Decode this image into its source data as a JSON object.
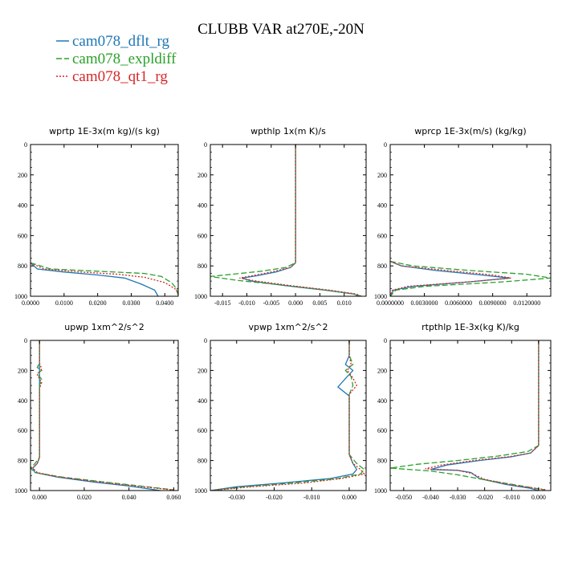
{
  "title": "CLUBB VAR at270E,-20N",
  "legend": [
    {
      "name": "cam078_dflt_rg",
      "color": "#1f77b4",
      "dash": "solid"
    },
    {
      "name": "cam078_expldiff",
      "color": "#2ca02c",
      "dash": "long-dash"
    },
    {
      "name": "cam078_qt1_rg",
      "color": "#d62728",
      "dash": "dotted"
    }
  ],
  "colors": {
    "dflt": "#1f77b4",
    "expldiff": "#2ca02c",
    "qt1": "#d62728"
  },
  "chart_data": [
    {
      "type": "line",
      "title": "wprtp  1E-3x(m kg)/(s kg)",
      "xlim": [
        0,
        0.044
      ],
      "ylim": [
        1000,
        0
      ],
      "xticks": [
        0,
        0.01,
        0.02,
        0.03,
        0.04
      ],
      "xtick_labels": [
        "0.0000",
        "0.0100",
        "0.0200",
        "0.0300",
        "0.0400"
      ],
      "yticks": [
        0,
        200,
        400,
        600,
        800,
        1000
      ],
      "series": [
        {
          "name": "cam078_dflt_rg",
          "points": [
            [
              0,
              780
            ],
            [
              0.002,
              820
            ],
            [
              0.01,
              840
            ],
            [
              0.02,
              860
            ],
            [
              0.028,
              880
            ],
            [
              0.033,
              920
            ],
            [
              0.037,
              960
            ],
            [
              0.038,
              1000
            ]
          ]
        },
        {
          "name": "cam078_expldiff",
          "points": [
            [
              0,
              780
            ],
            [
              0.006,
              820
            ],
            [
              0.02,
              835
            ],
            [
              0.034,
              850
            ],
            [
              0.039,
              870
            ],
            [
              0.042,
              910
            ],
            [
              0.0435,
              950
            ],
            [
              0.044,
              1000
            ]
          ]
        },
        {
          "name": "cam078_qt1_rg",
          "points": [
            [
              0,
              780
            ],
            [
              0.004,
              820
            ],
            [
              0.015,
              840
            ],
            [
              0.026,
              855
            ],
            [
              0.034,
              875
            ],
            [
              0.04,
              910
            ],
            [
              0.043,
              950
            ],
            [
              0.044,
              980
            ]
          ]
        }
      ]
    },
    {
      "type": "line",
      "title": "wpthlp  1x(m K)/s",
      "xlim": [
        -0.0175,
        0.0145
      ],
      "ylim": [
        1000,
        0
      ],
      "xticks": [
        -0.015,
        -0.01,
        -0.005,
        0,
        0.005,
        0.01
      ],
      "xtick_labels": [
        "-0.015",
        "-0.010",
        "-0.005",
        "0.000",
        "0.005",
        "0.010"
      ],
      "yticks": [
        0,
        200,
        400,
        600,
        800,
        1000
      ],
      "series": [
        {
          "name": "cam078_dflt_rg",
          "points": [
            [
              0,
              0
            ],
            [
              0,
              780
            ],
            [
              -0.001,
              810
            ],
            [
              -0.004,
              840
            ],
            [
              -0.008,
              865
            ],
            [
              -0.011,
              880
            ],
            [
              -0.009,
              900
            ],
            [
              -0.002,
              930
            ],
            [
              0.006,
              960
            ],
            [
              0.012,
              985
            ],
            [
              0.013,
              1000
            ]
          ]
        },
        {
          "name": "cam078_expldiff",
          "points": [
            [
              0,
              0
            ],
            [
              0,
              780
            ],
            [
              -0.002,
              810
            ],
            [
              -0.007,
              835
            ],
            [
              -0.013,
              855
            ],
            [
              -0.0175,
              870
            ],
            [
              -0.012,
              895
            ],
            [
              -0.003,
              925
            ],
            [
              0.006,
              958
            ],
            [
              0.012,
              985
            ],
            [
              0.0135,
              1000
            ]
          ]
        },
        {
          "name": "cam078_qt1_rg",
          "points": [
            [
              0,
              0
            ],
            [
              0,
              780
            ],
            [
              -0.001,
              810
            ],
            [
              -0.005,
              840
            ],
            [
              -0.009,
              865
            ],
            [
              -0.0115,
              880
            ],
            [
              -0.008,
              900
            ],
            [
              -0.001,
              930
            ],
            [
              0.007,
              960
            ],
            [
              0.0125,
              985
            ],
            [
              0.0135,
              1000
            ]
          ]
        }
      ]
    },
    {
      "type": "line",
      "title": "wprcp  1E-3x(m/s) (kg/kg)",
      "xlim": [
        0,
        0.0141
      ],
      "ylim": [
        1000,
        0
      ],
      "xticks": [
        0,
        0.003,
        0.006,
        0.009,
        0.012
      ],
      "xtick_labels": [
        "0.0000000",
        "0.0030000",
        "0.0060000",
        "0.0090000",
        "0.0120000"
      ],
      "yticks": [
        0,
        200,
        400,
        600,
        800,
        1000
      ],
      "series": [
        {
          "name": "cam078_dflt_rg",
          "points": [
            [
              0,
              770
            ],
            [
              0.001,
              800
            ],
            [
              0.004,
              830
            ],
            [
              0.008,
              860
            ],
            [
              0.0105,
              880
            ],
            [
              0.007,
              905
            ],
            [
              0.002,
              935
            ],
            [
              0.0003,
              960
            ],
            [
              0,
              1000
            ]
          ]
        },
        {
          "name": "cam078_expldiff",
          "points": [
            [
              0,
              770
            ],
            [
              0.002,
              800
            ],
            [
              0.007,
              830
            ],
            [
              0.012,
              855
            ],
            [
              0.0141,
              880
            ],
            [
              0.01,
              905
            ],
            [
              0.003,
              935
            ],
            [
              0.0005,
              960
            ],
            [
              0,
              1000
            ]
          ]
        },
        {
          "name": "cam078_qt1_rg",
          "points": [
            [
              0,
              770
            ],
            [
              0.001,
              800
            ],
            [
              0.005,
              830
            ],
            [
              0.009,
              860
            ],
            [
              0.0106,
              880
            ],
            [
              0.007,
              905
            ],
            [
              0.0015,
              935
            ],
            [
              0.0002,
              960
            ],
            [
              0,
              1000
            ]
          ]
        }
      ]
    },
    {
      "type": "line",
      "title": "upwp  1xm^2/s^2",
      "xlim": [
        -0.004,
        0.062
      ],
      "ylim": [
        1000,
        0
      ],
      "xticks": [
        0,
        0.02,
        0.04,
        0.06
      ],
      "xtick_labels": [
        "0.000",
        "0.020",
        "0.040",
        "0.060"
      ],
      "yticks": [
        0,
        200,
        400,
        600,
        800,
        1000
      ],
      "series": [
        {
          "name": "cam078_dflt_rg",
          "points": [
            [
              0,
              0
            ],
            [
              0,
              150
            ],
            [
              0,
              250
            ],
            [
              0,
              350
            ],
            [
              0,
              780
            ],
            [
              -0.001,
              820
            ],
            [
              -0.003,
              850
            ],
            [
              -0.002,
              880
            ],
            [
              0.008,
              910
            ],
            [
              0.025,
              945
            ],
            [
              0.04,
              970
            ],
            [
              0.054,
              1000
            ]
          ]
        },
        {
          "name": "cam078_expldiff",
          "points": [
            [
              0,
              0
            ],
            [
              0,
              150
            ],
            [
              -0.001,
              180
            ],
            [
              0.001,
              200
            ],
            [
              -0.001,
              220
            ],
            [
              0.001,
              260
            ],
            [
              0,
              300
            ],
            [
              0,
              780
            ],
            [
              -0.002,
              820
            ],
            [
              -0.004,
              850
            ],
            [
              -0.002,
              880
            ],
            [
              0.01,
              910
            ],
            [
              0.03,
              945
            ],
            [
              0.048,
              975
            ],
            [
              0.06,
              995
            ]
          ]
        },
        {
          "name": "cam078_qt1_rg",
          "points": [
            [
              0,
              0
            ],
            [
              0,
              150
            ],
            [
              0.001,
              190
            ],
            [
              -0.001,
              230
            ],
            [
              0.001,
              280
            ],
            [
              0,
              320
            ],
            [
              0,
              780
            ],
            [
              -0.001,
              820
            ],
            [
              -0.003,
              850
            ],
            [
              -0.001,
              880
            ],
            [
              0.009,
              910
            ],
            [
              0.028,
              945
            ],
            [
              0.046,
              975
            ],
            [
              0.061,
              998
            ]
          ]
        }
      ]
    },
    {
      "type": "line",
      "title": "vpwp  1xm^2/s^2",
      "xlim": [
        -0.037,
        0.0045
      ],
      "ylim": [
        1000,
        0
      ],
      "xticks": [
        -0.03,
        -0.02,
        -0.01,
        0
      ],
      "xtick_labels": [
        "-0.030",
        "-0.020",
        "-0.010",
        "0.000"
      ],
      "yticks": [
        0,
        200,
        400,
        600,
        800,
        1000
      ],
      "series": [
        {
          "name": "cam078_dflt_rg",
          "points": [
            [
              0,
              0
            ],
            [
              0,
              100
            ],
            [
              -0.001,
              160
            ],
            [
              0.001,
              200
            ],
            [
              -0.0005,
              240
            ],
            [
              -0.003,
              310
            ],
            [
              0,
              370
            ],
            [
              0,
              760
            ],
            [
              0.001,
              820
            ],
            [
              0.002,
              860
            ],
            [
              0.001,
              890
            ],
            [
              -0.005,
              920
            ],
            [
              -0.018,
              950
            ],
            [
              -0.03,
              975
            ],
            [
              -0.037,
              1000
            ]
          ]
        },
        {
          "name": "cam078_expldiff",
          "points": [
            [
              0,
              0
            ],
            [
              0,
              100
            ],
            [
              0.001,
              160
            ],
            [
              -0.001,
              200
            ],
            [
              0.0005,
              240
            ],
            [
              0.001,
              300
            ],
            [
              0,
              360
            ],
            [
              0,
              760
            ],
            [
              0.002,
              820
            ],
            [
              0.004,
              860
            ],
            [
              0.003,
              890
            ],
            [
              -0.003,
              920
            ],
            [
              -0.015,
              950
            ],
            [
              -0.028,
              975
            ],
            [
              -0.036,
              998
            ]
          ]
        },
        {
          "name": "cam078_qt1_rg",
          "points": [
            [
              0,
              0
            ],
            [
              0,
              100
            ],
            [
              0.0005,
              160
            ],
            [
              -0.0005,
              200
            ],
            [
              0.001,
              250
            ],
            [
              0.002,
              300
            ],
            [
              0,
              360
            ],
            [
              0,
              760
            ],
            [
              0.001,
              820
            ],
            [
              0.003,
              860
            ],
            [
              0.004,
              890
            ],
            [
              -0.002,
              920
            ],
            [
              -0.012,
              950
            ],
            [
              -0.026,
              975
            ],
            [
              -0.036,
              998
            ]
          ]
        }
      ]
    },
    {
      "type": "line",
      "title": "rtpthlp  1E-3x(kg K)/kg",
      "xlim": [
        -0.055,
        0.0045
      ],
      "ylim": [
        1000,
        0
      ],
      "xticks": [
        -0.05,
        -0.04,
        -0.03,
        -0.02,
        -0.01,
        0
      ],
      "xtick_labels": [
        "-0.050",
        "-0.040",
        "-0.030",
        "-0.020",
        "-0.010",
        "0.000"
      ],
      "yticks": [
        0,
        200,
        400,
        600,
        800,
        1000
      ],
      "series": [
        {
          "name": "cam078_dflt_rg",
          "points": [
            [
              0,
              0
            ],
            [
              0,
              700
            ],
            [
              -0.003,
              750
            ],
            [
              -0.01,
              775
            ],
            [
              -0.022,
              800
            ],
            [
              -0.034,
              830
            ],
            [
              -0.04,
              860
            ],
            [
              -0.03,
              865
            ],
            [
              -0.025,
              880
            ],
            [
              -0.022,
              920
            ],
            [
              -0.012,
              960
            ],
            [
              -0.003,
              985
            ],
            [
              0,
              1000
            ]
          ]
        },
        {
          "name": "cam078_expldiff",
          "points": [
            [
              0,
              0
            ],
            [
              0,
              700
            ],
            [
              -0.004,
              740
            ],
            [
              -0.015,
              770
            ],
            [
              -0.03,
              800
            ],
            [
              -0.045,
              825
            ],
            [
              -0.055,
              850
            ],
            [
              -0.04,
              870
            ],
            [
              -0.03,
              895
            ],
            [
              -0.018,
              935
            ],
            [
              -0.006,
              970
            ],
            [
              0.002,
              995
            ]
          ]
        },
        {
          "name": "cam078_qt1_rg",
          "points": [
            [
              0,
              0
            ],
            [
              0,
              700
            ],
            [
              -0.003,
              750
            ],
            [
              -0.011,
              775
            ],
            [
              -0.024,
              800
            ],
            [
              -0.036,
              830
            ],
            [
              -0.042,
              855
            ],
            [
              -0.03,
              865
            ],
            [
              -0.025,
              885
            ],
            [
              -0.02,
              925
            ],
            [
              -0.009,
              965
            ],
            [
              0.003,
              995
            ]
          ]
        }
      ]
    }
  ]
}
